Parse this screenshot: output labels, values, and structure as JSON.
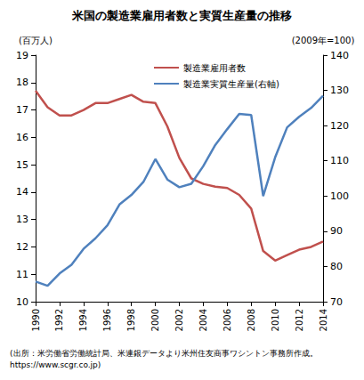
{
  "chart_data": {
    "type": "line",
    "title": "米国の製造業雇用者数と実質生産量の推移",
    "source": [
      "(出所：米労働省労働統計局、米連銀データより米州住友商事ワシントン事務所作成。",
      "https://www.scgr.co.jp)"
    ],
    "y_label": "(百万人)",
    "y2_label": "(2009年=100)",
    "x": [
      1990,
      1991,
      1992,
      1993,
      1994,
      1995,
      1996,
      1997,
      1998,
      1999,
      2000,
      2001,
      2002,
      2003,
      2004,
      2005,
      2006,
      2007,
      2008,
      2009,
      2010,
      2011,
      2012,
      2013,
      2014
    ],
    "xlim": [
      1990,
      2014
    ],
    "xticks": [
      1990,
      1992,
      1994,
      1996,
      1998,
      2000,
      2002,
      2004,
      2006,
      2008,
      2010,
      2012,
      2014
    ],
    "ylim": [
      10,
      19
    ],
    "yticks": [
      10,
      11,
      12,
      13,
      14,
      15,
      16,
      17,
      18,
      19
    ],
    "y2lim": [
      70,
      140
    ],
    "y2ticks": [
      70,
      80,
      90,
      100,
      110,
      120,
      130,
      140
    ],
    "grid": false,
    "legend": "top",
    "series": [
      {
        "name": "製造業雇用者数",
        "color": "#c0504d",
        "axis": "y",
        "values": [
          17.7,
          17.1,
          16.8,
          16.8,
          17.0,
          17.25,
          17.25,
          17.4,
          17.55,
          17.3,
          17.25,
          16.4,
          15.25,
          14.5,
          14.3,
          14.2,
          14.15,
          13.9,
          13.4,
          11.85,
          11.5,
          11.7,
          11.9,
          12.0,
          12.2
        ]
      },
      {
        "name": "製造業実質生産量(右軸)",
        "color": "#4f81bd",
        "axis": "y2",
        "values": [
          75.7,
          74.5,
          78.0,
          80.5,
          85.0,
          88.0,
          91.7,
          97.6,
          100.3,
          104.0,
          110.5,
          104.7,
          102.5,
          103.5,
          108.5,
          114.5,
          119.0,
          123.3,
          123.0,
          100.0,
          111.0,
          119.5,
          122.5,
          125.0,
          128.5
        ]
      }
    ]
  }
}
